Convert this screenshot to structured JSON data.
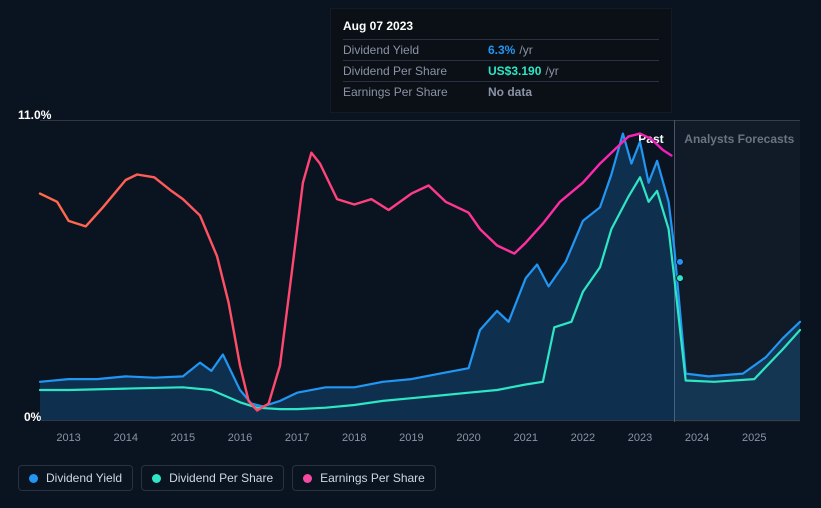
{
  "tooltip": {
    "date": "Aug 07 2023",
    "rows": [
      {
        "label": "Dividend Yield",
        "value": "6.3%",
        "unit": "/yr",
        "color": "#2196f3"
      },
      {
        "label": "Dividend Per Share",
        "value": "US$3.190",
        "unit": "/yr",
        "color": "#2ee6c5"
      },
      {
        "label": "Earnings Per Share",
        "value": "No data",
        "unit": "",
        "color": "#8a94a6"
      }
    ]
  },
  "chart": {
    "type": "line",
    "background_color": "#0a1421",
    "grid_color": "#303846",
    "ylim": [
      0,
      11.0
    ],
    "y_ticks": [
      {
        "v": 0,
        "label": "0%"
      },
      {
        "v": 11.0,
        "label": "11.0%"
      }
    ],
    "xlim": [
      2012.5,
      2025.8
    ],
    "x_ticks": [
      2013,
      2014,
      2015,
      2016,
      2017,
      2018,
      2019,
      2020,
      2021,
      2022,
      2023,
      2024,
      2025
    ],
    "past_boundary": 2023.6,
    "cursor_x": 2023.6,
    "past_label": "Past",
    "forecast_label": "Analysts Forecasts",
    "forecast_markers": [
      {
        "x": 2023.7,
        "y": 5.8,
        "color": "#2196f3"
      },
      {
        "x": 2023.7,
        "y": 5.2,
        "color": "#2ee6c5"
      }
    ],
    "series": [
      {
        "name": "Dividend Yield",
        "color": "#2196f3",
        "fill": "rgba(33,150,243,0.22)",
        "line_width": 2.2,
        "points": [
          [
            2012.5,
            1.4
          ],
          [
            2013,
            1.5
          ],
          [
            2013.5,
            1.5
          ],
          [
            2014,
            1.6
          ],
          [
            2014.5,
            1.55
          ],
          [
            2015,
            1.6
          ],
          [
            2015.3,
            2.1
          ],
          [
            2015.5,
            1.8
          ],
          [
            2015.7,
            2.4
          ],
          [
            2016,
            1.1
          ],
          [
            2016.2,
            0.6
          ],
          [
            2016.4,
            0.5
          ],
          [
            2016.7,
            0.7
          ],
          [
            2017,
            1.0
          ],
          [
            2017.5,
            1.2
          ],
          [
            2018,
            1.2
          ],
          [
            2018.5,
            1.4
          ],
          [
            2019,
            1.5
          ],
          [
            2019.5,
            1.7
          ],
          [
            2020,
            1.9
          ],
          [
            2020.2,
            3.3
          ],
          [
            2020.5,
            4.0
          ],
          [
            2020.7,
            3.6
          ],
          [
            2021,
            5.2
          ],
          [
            2021.2,
            5.7
          ],
          [
            2021.4,
            4.9
          ],
          [
            2021.7,
            5.8
          ],
          [
            2022,
            7.3
          ],
          [
            2022.3,
            7.8
          ],
          [
            2022.5,
            9.0
          ],
          [
            2022.7,
            10.5
          ],
          [
            2022.85,
            9.4
          ],
          [
            2023.0,
            10.2
          ],
          [
            2023.15,
            8.7
          ],
          [
            2023.3,
            9.5
          ],
          [
            2023.5,
            8.0
          ],
          [
            2023.6,
            6.3
          ],
          [
            2023.8,
            1.7
          ],
          [
            2024.2,
            1.6
          ],
          [
            2024.8,
            1.7
          ],
          [
            2025.2,
            2.3
          ],
          [
            2025.5,
            3.0
          ],
          [
            2025.8,
            3.6
          ]
        ]
      },
      {
        "name": "Dividend Per Share",
        "color": "#2ee6c5",
        "fill": "none",
        "line_width": 2.2,
        "points": [
          [
            2012.5,
            1.1
          ],
          [
            2013,
            1.1
          ],
          [
            2014,
            1.15
          ],
          [
            2015,
            1.2
          ],
          [
            2015.5,
            1.1
          ],
          [
            2016,
            0.65
          ],
          [
            2016.3,
            0.45
          ],
          [
            2016.7,
            0.4
          ],
          [
            2017,
            0.4
          ],
          [
            2017.5,
            0.45
          ],
          [
            2018,
            0.55
          ],
          [
            2018.5,
            0.7
          ],
          [
            2019,
            0.8
          ],
          [
            2019.5,
            0.9
          ],
          [
            2020,
            1.0
          ],
          [
            2020.5,
            1.1
          ],
          [
            2021,
            1.3
          ],
          [
            2021.3,
            1.4
          ],
          [
            2021.5,
            3.4
          ],
          [
            2021.8,
            3.6
          ],
          [
            2022,
            4.7
          ],
          [
            2022.3,
            5.6
          ],
          [
            2022.5,
            7.0
          ],
          [
            2022.8,
            8.2
          ],
          [
            2023.0,
            8.9
          ],
          [
            2023.15,
            8.0
          ],
          [
            2023.3,
            8.4
          ],
          [
            2023.5,
            7.0
          ],
          [
            2023.6,
            5.2
          ],
          [
            2023.8,
            1.45
          ],
          [
            2024.3,
            1.4
          ],
          [
            2025,
            1.5
          ],
          [
            2025.5,
            2.6
          ],
          [
            2025.8,
            3.3
          ]
        ]
      },
      {
        "name": "Earnings Per Share",
        "color_stops": [
          [
            0,
            "#ff6b4a"
          ],
          [
            0.2,
            "#ff5a5a"
          ],
          [
            0.35,
            "#ff4a6a"
          ],
          [
            0.6,
            "#ff3a8a"
          ],
          [
            0.85,
            "#ff2aa8"
          ],
          [
            1,
            "#f01ec0"
          ]
        ],
        "fill": "none",
        "line_width": 2.4,
        "points": [
          [
            2012.5,
            8.3
          ],
          [
            2012.8,
            8.0
          ],
          [
            2013,
            7.3
          ],
          [
            2013.3,
            7.1
          ],
          [
            2013.6,
            7.8
          ],
          [
            2014,
            8.8
          ],
          [
            2014.2,
            9.0
          ],
          [
            2014.5,
            8.9
          ],
          [
            2014.8,
            8.4
          ],
          [
            2015,
            8.1
          ],
          [
            2015.3,
            7.5
          ],
          [
            2015.6,
            6.0
          ],
          [
            2015.8,
            4.3
          ],
          [
            2016,
            2.0
          ],
          [
            2016.15,
            0.7
          ],
          [
            2016.3,
            0.35
          ],
          [
            2016.5,
            0.6
          ],
          [
            2016.7,
            2.0
          ],
          [
            2016.9,
            5.3
          ],
          [
            2017.1,
            8.7
          ],
          [
            2017.25,
            9.8
          ],
          [
            2017.4,
            9.4
          ],
          [
            2017.7,
            8.1
          ],
          [
            2018,
            7.9
          ],
          [
            2018.3,
            8.1
          ],
          [
            2018.6,
            7.7
          ],
          [
            2019,
            8.3
          ],
          [
            2019.3,
            8.6
          ],
          [
            2019.6,
            8.0
          ],
          [
            2020,
            7.6
          ],
          [
            2020.2,
            7.0
          ],
          [
            2020.5,
            6.4
          ],
          [
            2020.8,
            6.1
          ],
          [
            2021,
            6.5
          ],
          [
            2021.3,
            7.2
          ],
          [
            2021.6,
            8.0
          ],
          [
            2022,
            8.7
          ],
          [
            2022.3,
            9.4
          ],
          [
            2022.6,
            10.0
          ],
          [
            2022.8,
            10.4
          ],
          [
            2023.0,
            10.5
          ],
          [
            2023.2,
            10.3
          ],
          [
            2023.4,
            9.9
          ],
          [
            2023.55,
            9.7
          ]
        ]
      }
    ]
  },
  "legend": [
    {
      "label": "Dividend Yield",
      "color": "#2196f3"
    },
    {
      "label": "Dividend Per Share",
      "color": "#2ee6c5"
    },
    {
      "label": "Earnings Per Share",
      "color": "#f54aa0"
    }
  ],
  "label_fontsize": 12,
  "axis_font_color": "#8a94a6"
}
